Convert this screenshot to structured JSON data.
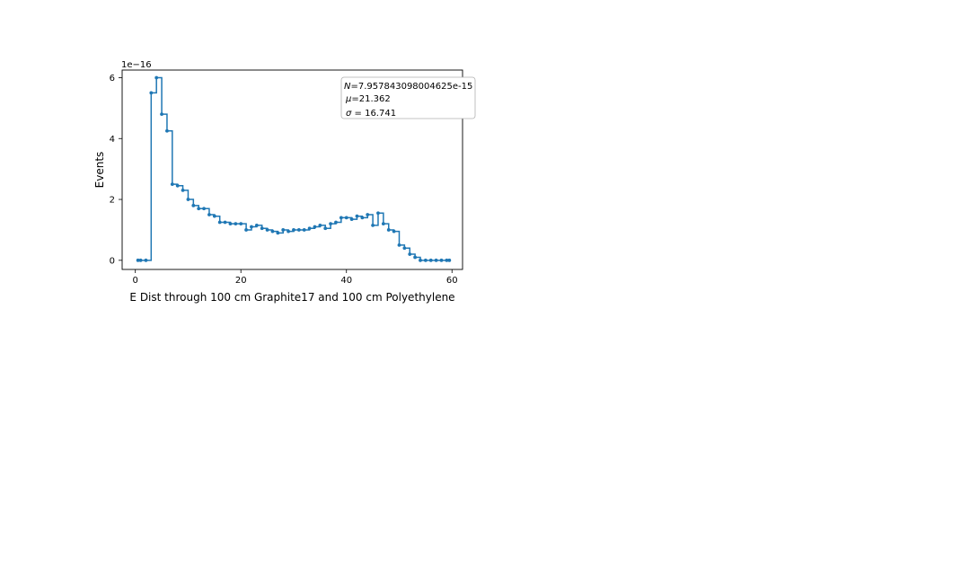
{
  "chart_data": {
    "type": "line",
    "drawstyle": "steps-mid",
    "markers": true,
    "color": "#1f77b4",
    "xlabel": "E Dist through 100 cm Graphite17 and 100 cm Polyethylene",
    "ylabel": "Events",
    "offset_label": "1e−16",
    "xlim": [
      -2.5,
      62
    ],
    "ylim": [
      -0.3,
      6.25
    ],
    "xticks": [
      0,
      20,
      40,
      60
    ],
    "xtick_labels": [
      "0",
      "20",
      "40",
      "60"
    ],
    "yticks": [
      0,
      2,
      4,
      6
    ],
    "ytick_labels": [
      "0",
      "2",
      "4",
      "6"
    ],
    "grid": false,
    "legend_placement": "upper-right",
    "stats_box": [
      {
        "symbol": "N",
        "value": "=7.957843098004625e-15"
      },
      {
        "symbol": "μ",
        "value": "=21.362"
      },
      {
        "symbol": "σ",
        "value": " = 16.741"
      }
    ],
    "x": [
      0.5,
      1.5,
      2.5,
      3.5,
      4.5,
      5.5,
      6.5,
      7.5,
      8.5,
      9.5,
      10.5,
      11.5,
      12.5,
      13.5,
      14.5,
      15.5,
      16.5,
      17.5,
      18.5,
      19.5,
      20.5,
      21.5,
      22.5,
      23.5,
      24.5,
      25.5,
      26.5,
      27.5,
      28.5,
      29.5,
      30.5,
      31.5,
      32.5,
      33.5,
      34.5,
      35.5,
      36.5,
      37.5,
      38.5,
      39.5,
      40.5,
      41.5,
      42.5,
      43.5,
      44.5,
      45.5,
      46.5,
      47.5,
      48.5,
      49.5,
      50.5,
      51.5,
      52.5,
      53.5,
      54.5,
      55.5,
      56.5,
      57.5,
      58.5,
      59.5
    ],
    "values": [
      0,
      0,
      0,
      5.5,
      6.0,
      4.8,
      4.25,
      2.5,
      2.45,
      2.3,
      2.0,
      1.8,
      1.7,
      1.7,
      1.5,
      1.45,
      1.25,
      1.25,
      1.2,
      1.2,
      1.2,
      1.0,
      1.1,
      1.15,
      1.05,
      1.0,
      0.95,
      0.9,
      1.0,
      0.95,
      1.0,
      1.0,
      1.0,
      1.05,
      1.1,
      1.15,
      1.05,
      1.2,
      1.25,
      1.4,
      1.4,
      1.35,
      1.45,
      1.4,
      1.5,
      1.15,
      1.55,
      1.2,
      1.0,
      0.95,
      0.5,
      0.4,
      0.2,
      0.1,
      0.0,
      0.0,
      0.0,
      0.0,
      0.0,
      0.0
    ]
  }
}
